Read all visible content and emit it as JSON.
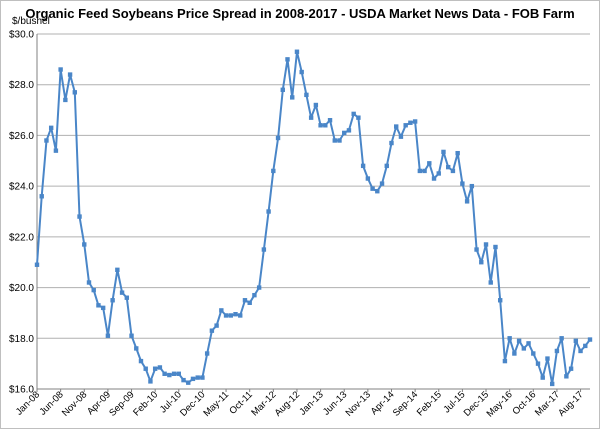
{
  "chart_data": {
    "type": "line",
    "title": "Organic Feed Soybeans Price Spread in 2008-2017 - USDA Market News Data - FOB Farm",
    "ylabel": "$/bushel",
    "xlabel": "",
    "ylim": [
      16,
      30
    ],
    "yticks": [
      "$16.0",
      "$18.0",
      "$20.0",
      "$22.0",
      "$24.0",
      "$26.0",
      "$28.0",
      "$30.0"
    ],
    "xtick_labels": [
      "Jan-08",
      "Jun-08",
      "Nov-08",
      "Apr-09",
      "Sep-09",
      "Feb-10",
      "Jul-10",
      "Dec-10",
      "May-11",
      "Oct-11",
      "Mar-12",
      "Aug-12",
      "Jan-13",
      "Jun-13",
      "Nov-13",
      "Apr-14",
      "Sep-14",
      "Feb-15",
      "Jul-15",
      "Dec-15",
      "May-16",
      "Oct-16",
      "Mar-17",
      "Aug-17"
    ],
    "grid": true,
    "line_color": "#4a86c8",
    "series": [
      {
        "name": "",
        "values": [
          20.9,
          23.6,
          25.8,
          26.3,
          25.4,
          28.6,
          27.4,
          28.4,
          27.7,
          22.8,
          21.7,
          20.2,
          19.9,
          19.3,
          19.2,
          18.1,
          19.5,
          20.7,
          19.8,
          19.6,
          18.1,
          17.6,
          17.1,
          16.8,
          16.3,
          16.8,
          16.85,
          16.6,
          16.55,
          16.6,
          16.6,
          16.35,
          16.25,
          16.4,
          16.45,
          16.45,
          17.4,
          18.3,
          18.5,
          19.1,
          18.9,
          18.9,
          18.95,
          18.9,
          19.5,
          19.4,
          19.7,
          20.0,
          21.5,
          23.0,
          24.6,
          25.9,
          27.8,
          29.0,
          27.5,
          29.3,
          28.5,
          27.6,
          26.7,
          27.2,
          26.4,
          26.4,
          26.6,
          25.8,
          25.8,
          26.1,
          26.2,
          26.85,
          26.7,
          24.8,
          24.3,
          23.9,
          23.8,
          24.1,
          24.8,
          25.7,
          26.35,
          25.95,
          26.4,
          26.5,
          26.55,
          24.6,
          24.6,
          24.9,
          24.3,
          24.5,
          25.35,
          24.75,
          24.6,
          25.3,
          24.1,
          23.4,
          24.0,
          21.5,
          21.0,
          21.7,
          20.2,
          21.6,
          19.5,
          17.1,
          18.0,
          17.4,
          17.9,
          17.6,
          17.8,
          17.4,
          17.0,
          16.45,
          17.2,
          16.2,
          17.5,
          18.0,
          16.5,
          16.8,
          17.9,
          17.5,
          17.7,
          17.95
        ]
      }
    ]
  }
}
